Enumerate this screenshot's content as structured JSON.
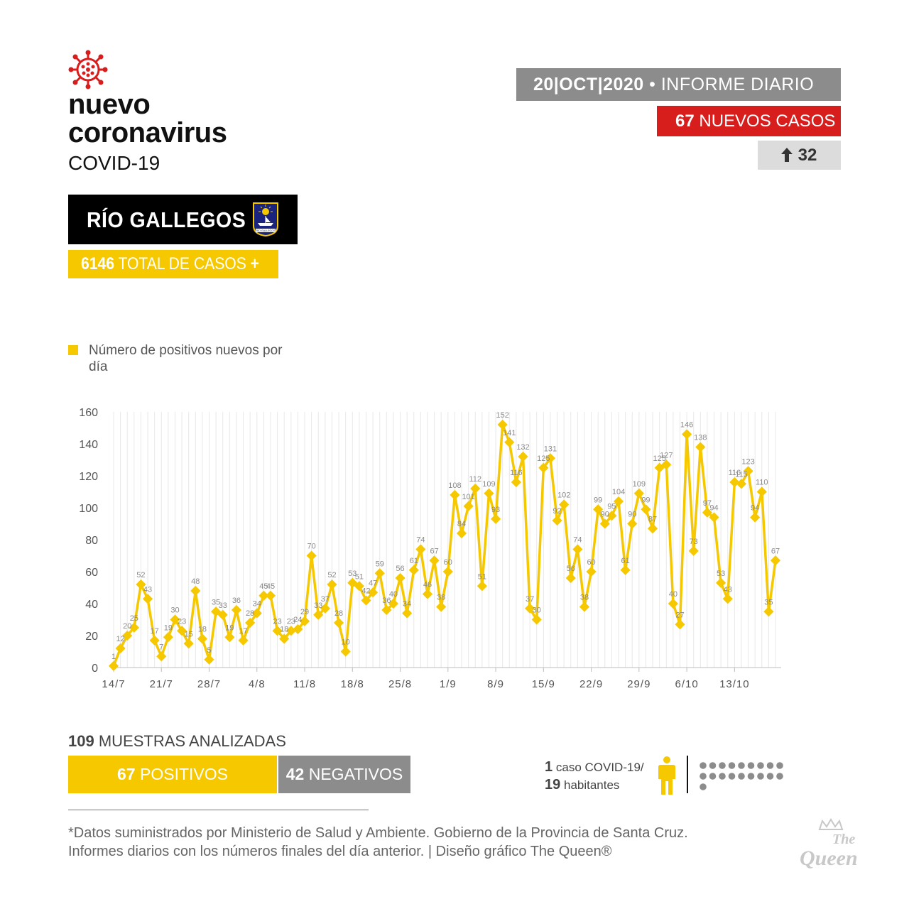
{
  "header": {
    "title_line1": "nuevo",
    "title_line2": "coronavirus",
    "subtitle": "COVID-19",
    "icon": "virus-icon"
  },
  "city": {
    "name": "RÍO GALLEGOS",
    "shield_icon": "city-shield-icon",
    "shield_text": "RÍO GALLEGOS"
  },
  "total": {
    "value": "6146",
    "label": "TOTAL DE CASOS",
    "symbol": "+"
  },
  "report": {
    "date": "20|OCT|2020",
    "separator": "•",
    "type": "INFORME DIARIO",
    "new_cases_value": "67",
    "new_cases_label": "NUEVOS CASOS",
    "change_icon": "arrow-up-icon",
    "change_value": "32"
  },
  "legend": {
    "label": "Número de positivos nuevos por día"
  },
  "colors": {
    "yellow": "#f5c800",
    "red": "#d81d1d",
    "gray": "#8c8c8c",
    "light_gray": "#dcdcdc"
  },
  "chart_data": {
    "type": "line",
    "title": "",
    "xlabel": "",
    "ylabel": "",
    "ylim": [
      0,
      160
    ],
    "yticks": [
      "0",
      "20",
      "40",
      "60",
      "80",
      "100",
      "120",
      "140",
      "160"
    ],
    "grid": true,
    "legend_position": "top-left",
    "x_tick_labels": [
      "14/7",
      "21/7",
      "28/7",
      "4/8",
      "11/8",
      "18/8",
      "25/8",
      "1/9",
      "8/9",
      "15/9",
      "22/9",
      "29/9",
      "6/10",
      "13/10"
    ],
    "x_start": "14/7",
    "x_end": "20/10",
    "series": [
      {
        "name": "Número de positivos nuevos por día",
        "values": [
          1,
          12,
          20,
          25,
          52,
          43,
          17,
          7,
          19,
          30,
          23,
          15,
          48,
          18,
          5,
          35,
          33,
          19,
          36,
          17,
          28,
          34,
          45,
          45,
          23,
          18,
          23,
          24,
          29,
          70,
          33,
          37,
          52,
          28,
          10,
          53,
          51,
          42,
          47,
          59,
          36,
          40,
          56,
          34,
          61,
          74,
          46,
          67,
          38,
          60,
          108,
          84,
          101,
          112,
          51,
          109,
          93,
          152,
          141,
          116,
          132,
          37,
          30,
          125,
          131,
          92,
          102,
          56,
          74,
          38,
          60,
          99,
          90,
          95,
          104,
          61,
          90,
          109,
          99,
          87,
          125,
          127,
          40,
          27,
          146,
          73,
          138,
          97,
          94,
          53,
          43,
          116,
          115,
          123,
          94,
          110,
          35,
          67
        ]
      }
    ]
  },
  "samples": {
    "total_value": "109",
    "total_label": "MUESTRAS ANALIZADAS",
    "positive_value": "67",
    "positive_label": "POSITIVOS",
    "negative_value": "42",
    "negative_label": "NEGATIVOS"
  },
  "ratio": {
    "cases_value": "1",
    "cases_label": "caso COVID-19/",
    "people_value": "19",
    "people_label": "habitantes",
    "person_icon": "person-icon",
    "dots_icon": "population-dots-icon",
    "dot_count": 19
  },
  "footer": {
    "line1": "*Datos suministrados por Ministerio de Salud y Ambiente. Gobierno de la Provincia de Santa Cruz.",
    "line2": "Informes diarios con los números finales del día anterior. | Diseño gráfico The Queen®",
    "logo_icon": "the-queen-logo-icon",
    "logo_text_1": "The",
    "logo_text_2": "Queen"
  }
}
